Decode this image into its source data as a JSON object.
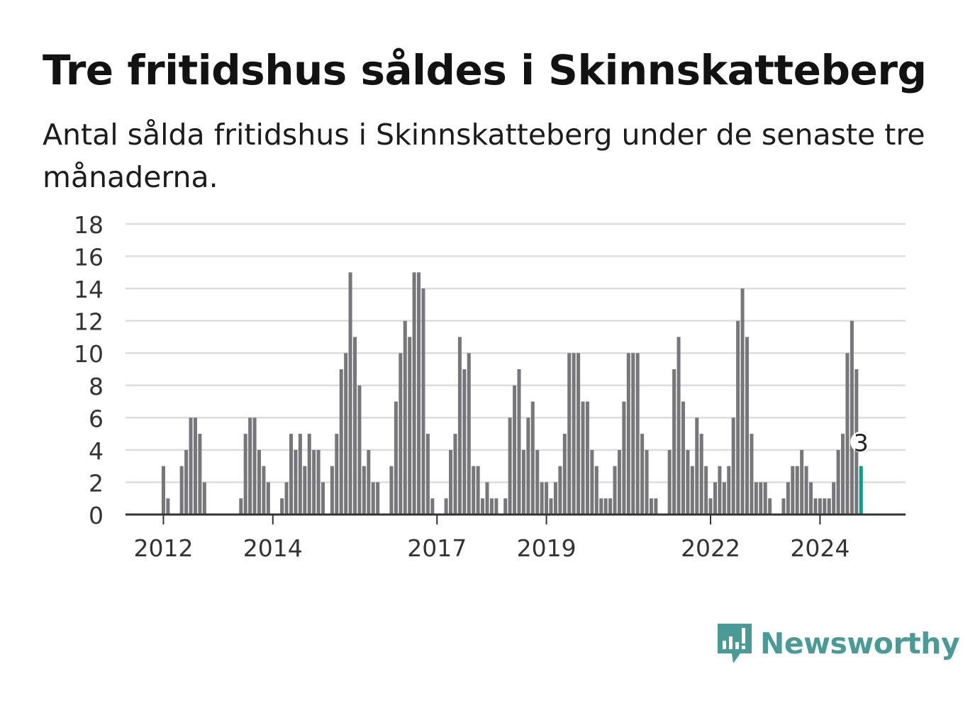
{
  "title": "Tre fritidshus såldes i Skinnskatteberg",
  "subtitle": "Antal sålda fritidshus i Skinnskatteberg under de senaste tre månaderna.",
  "logo_text": "Newsworthy",
  "colors": {
    "bar": "#77767b",
    "highlight": "#13998b",
    "grid": "#dddddd",
    "axis": "#333333",
    "logo": "#4a9a97"
  },
  "chart_data": {
    "type": "bar",
    "title": "Tre fritidshus såldes i Skinnskatteberg",
    "xlabel": "",
    "ylabel": "",
    "ylim": [
      0,
      18
    ],
    "yticks": [
      0,
      2,
      4,
      6,
      8,
      10,
      12,
      14,
      16,
      18
    ],
    "xtick_labels": [
      "2012",
      "2014",
      "2017",
      "2019",
      "2022",
      "2024"
    ],
    "xtick_indices": [
      8,
      32,
      68,
      92,
      128,
      152
    ],
    "grid": true,
    "highlight_label": "3",
    "values": [
      0,
      0,
      0,
      0,
      0,
      0,
      0,
      0,
      3,
      1,
      0,
      0,
      3,
      4,
      6,
      6,
      5,
      2,
      0,
      0,
      0,
      0,
      0,
      0,
      0,
      1,
      5,
      6,
      6,
      4,
      3,
      2,
      0,
      0,
      1,
      2,
      5,
      4,
      5,
      3,
      5,
      4,
      4,
      2,
      0,
      3,
      5,
      9,
      10,
      15,
      11,
      8,
      3,
      4,
      2,
      2,
      0,
      0,
      3,
      7,
      10,
      12,
      11,
      15,
      15,
      14,
      5,
      1,
      0,
      0,
      1,
      4,
      5,
      11,
      9,
      10,
      3,
      3,
      1,
      2,
      1,
      1,
      0,
      1,
      6,
      8,
      9,
      4,
      6,
      7,
      4,
      2,
      2,
      1,
      2,
      3,
      5,
      10,
      10,
      10,
      7,
      7,
      4,
      3,
      1,
      1,
      1,
      3,
      4,
      7,
      10,
      10,
      10,
      5,
      4,
      1,
      1,
      0,
      0,
      4,
      9,
      11,
      7,
      4,
      3,
      6,
      5,
      3,
      1,
      2,
      3,
      2,
      3,
      6,
      12,
      14,
      11,
      5,
      2,
      2,
      2,
      1,
      0,
      0,
      1,
      2,
      3,
      3,
      4,
      3,
      2,
      1,
      1,
      1,
      1,
      2,
      4,
      5,
      10,
      12,
      9,
      3
    ]
  }
}
